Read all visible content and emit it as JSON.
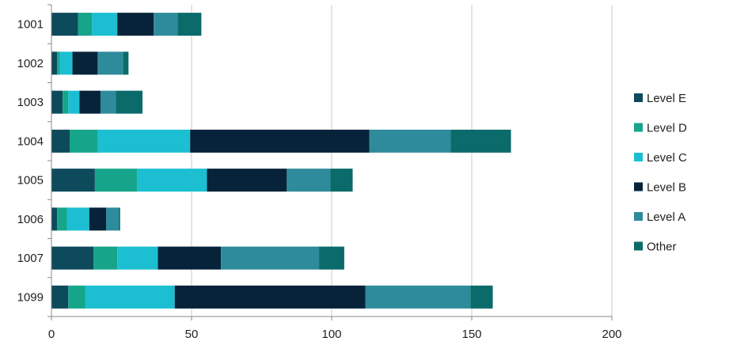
{
  "chart_data": {
    "type": "bar",
    "orientation": "horizontal",
    "stacked": true,
    "categories": [
      "1001",
      "1002",
      "1003",
      "1004",
      "1005",
      "1006",
      "1007",
      "1099"
    ],
    "series": [
      {
        "name": "Level E",
        "color": "#0d4a5c",
        "values": [
          9.5,
          2,
          4,
          6.5,
          15.5,
          2,
          15,
          6
        ]
      },
      {
        "name": "Level D",
        "color": "#16a58a",
        "values": [
          5,
          1,
          2,
          10,
          15,
          3.5,
          8.5,
          6
        ]
      },
      {
        "name": "Level C",
        "color": "#1bbfd1",
        "values": [
          9,
          4.5,
          4,
          33,
          25,
          8,
          14.5,
          32
        ]
      },
      {
        "name": "Level B",
        "color": "#06233a",
        "values": [
          13,
          9,
          7.5,
          64,
          28.5,
          6,
          22.5,
          68
        ]
      },
      {
        "name": "Level A",
        "color": "#2e8b9b",
        "values": [
          8.5,
          9,
          5.5,
          29,
          15.5,
          4.5,
          35,
          37.5
        ]
      },
      {
        "name": "Other",
        "color": "#0b6b6b",
        "values": [
          8.5,
          2,
          9.5,
          21.5,
          8,
          0.5,
          9,
          8
        ]
      }
    ],
    "xlim": [
      0,
      200
    ],
    "xticks": [
      "0",
      "50",
      "100",
      "150",
      "200"
    ],
    "grid": true,
    "legend_position": "right",
    "title": "",
    "xlabel": "",
    "ylabel": ""
  }
}
